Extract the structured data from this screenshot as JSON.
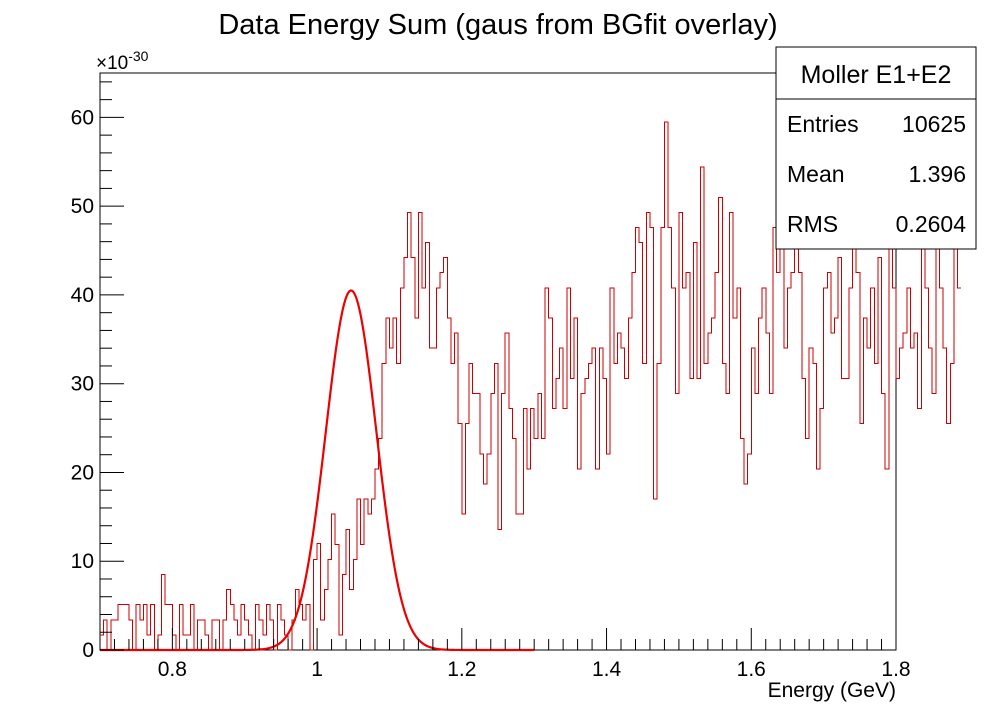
{
  "chart_data": {
    "type": "histogram",
    "title": "Data Energy Sum (gaus from BGfit overlay)",
    "xlabel": "Energy (GeV)",
    "ylabel": "",
    "xlim": [
      0.7,
      1.8
    ],
    "ylim": [
      0,
      65
    ],
    "y_multiplier_base": "×10",
    "y_multiplier_exp": "-30",
    "x_ticks": [
      0.8,
      1,
      1.2,
      1.4,
      1.6,
      1.8
    ],
    "x_tick_labels": [
      "0.8",
      "1",
      "1.2",
      "1.4",
      "1.6",
      "1.8"
    ],
    "y_ticks": [
      0,
      10,
      20,
      30,
      40,
      50,
      60
    ],
    "y_tick_labels": [
      "0",
      "10",
      "20",
      "30",
      "40",
      "50",
      "60"
    ],
    "grid": false,
    "colors": {
      "histogram": "#cc0000",
      "fit": "#ee0000",
      "axes": "#000000"
    },
    "series": [
      {
        "kind": "step-histogram",
        "x_start": 0.7,
        "bin_width": 0.005,
        "values": [
          1.7,
          3.4,
          0,
          3.4,
          3.4,
          5.1,
          5.1,
          5.1,
          3.4,
          0,
          5.1,
          3.4,
          5.1,
          1.7,
          5.1,
          0,
          1.7,
          8.5,
          5.1,
          5.1,
          1.7,
          0,
          5.1,
          1.7,
          1.7,
          5.1,
          0,
          3.4,
          3.4,
          1.7,
          0,
          3.4,
          3.4,
          0,
          3.4,
          6.8,
          5.1,
          3.4,
          1.7,
          5.1,
          3.4,
          1.7,
          0,
          5.1,
          3.4,
          1.7,
          5.1,
          3.4,
          0,
          5.1,
          3.4,
          1.7,
          0,
          3.4,
          6.8,
          5.1,
          3.4,
          5.1,
          0,
          10.2,
          12.0,
          3.4,
          6.8,
          10.2,
          15.3,
          11.9,
          1.7,
          8.5,
          13.6,
          6.8,
          10.2,
          17.0,
          11.9,
          17.0,
          15.3,
          17.0,
          20.4,
          23.8,
          32.3,
          37.4,
          34.0,
          37.4,
          32.3,
          40.8,
          44.2,
          49.3,
          44.2,
          37.4,
          49.3,
          40.8,
          45.9,
          34.0,
          34.0,
          40.8,
          42.5,
          44.2,
          37.4,
          32.3,
          35.7,
          25.5,
          15.3,
          25.5,
          32.3,
          28.9,
          28.9,
          22.1,
          18.7,
          22.1,
          28.9,
          32.3,
          13.6,
          28.9,
          35.7,
          27.2,
          23.8,
          15.3,
          15.3,
          27.2,
          20.4,
          27.2,
          23.8,
          28.9,
          23.8,
          40.8,
          37.4,
          27.2,
          30.6,
          34.0,
          27.2,
          40.8,
          30.6,
          37.4,
          20.4,
          28.9,
          30.6,
          32.3,
          34.0,
          20.4,
          34.0,
          30.6,
          22.1,
          40.8,
          32.3,
          35.7,
          34.0,
          30.6,
          37.4,
          42.5,
          47.6,
          45.9,
          32.3,
          49.3,
          47.6,
          17.0,
          32.3,
          47.6,
          59.5,
          47.6,
          40.8,
          28.9,
          49.3,
          40.8,
          42.5,
          30.6,
          45.9,
          30.6,
          54.4,
          32.3,
          35.7,
          37.4,
          42.5,
          51.0,
          32.3,
          28.9,
          49.3,
          37.4,
          40.8,
          23.8,
          18.7,
          22.1,
          34.0,
          28.9,
          37.4,
          40.8,
          35.7,
          28.9,
          47.6,
          42.5,
          51.0,
          34.0,
          40.8,
          42.5,
          45.9,
          42.5,
          30.6,
          23.8,
          34.0,
          32.3,
          20.4,
          27.2,
          40.8,
          42.5,
          35.7,
          37.4,
          44.2,
          30.6,
          30.6,
          40.8,
          45.9,
          42.5,
          25.5,
          37.4,
          34.0,
          40.8,
          32.3,
          44.2,
          28.9,
          20.4,
          45.9,
          40.8,
          30.6,
          34.0,
          35.7,
          40.8,
          34.0,
          35.7,
          27.2,
          45.9,
          40.8,
          34.0,
          28.9,
          45.9,
          40.8,
          34.0,
          25.5,
          32.3,
          45.9,
          40.8
        ]
      },
      {
        "kind": "gaussian-fit",
        "amplitude": 40.5,
        "mean": 1.047,
        "sigma": 0.035,
        "x_range": [
          0.7,
          1.3
        ]
      }
    ],
    "stats_box": {
      "title": "Moller E1+E2",
      "rows": [
        {
          "label": "Entries",
          "value": "10625"
        },
        {
          "label": "Mean",
          "value": "1.396"
        },
        {
          "label": "RMS",
          "value": "0.2604"
        }
      ]
    }
  }
}
